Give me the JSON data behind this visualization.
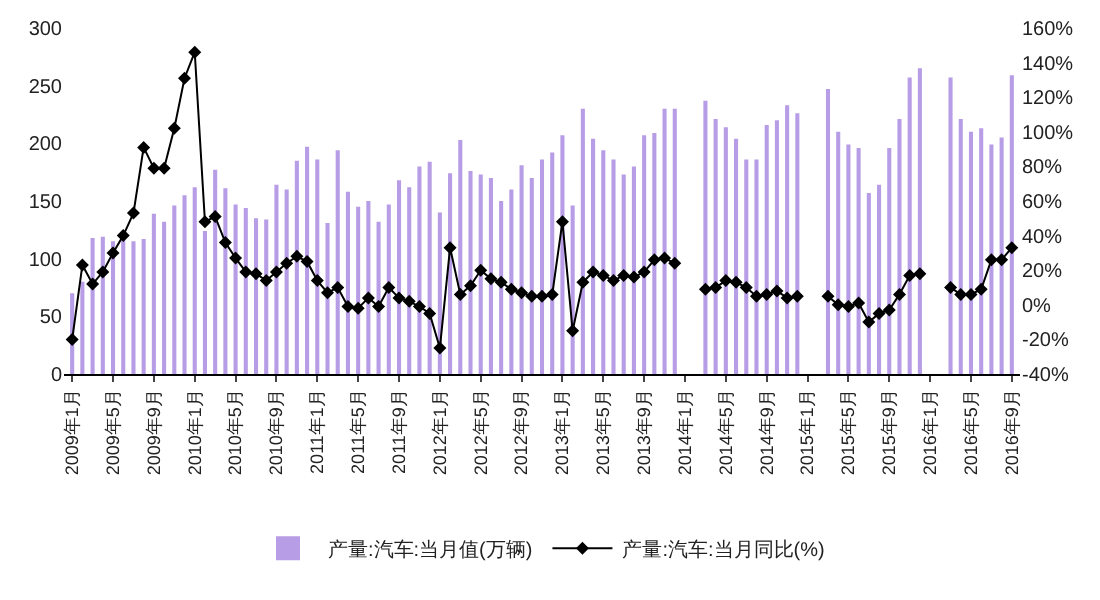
{
  "chart_data": {
    "type": "bar",
    "categories": [
      "2009年1月",
      null,
      null,
      null,
      "2009年5月",
      null,
      null,
      null,
      "2009年9月",
      null,
      null,
      null,
      "2010年1月",
      null,
      null,
      null,
      "2010年5月",
      null,
      null,
      null,
      "2010年9月",
      null,
      null,
      null,
      "2011年1月",
      null,
      null,
      null,
      "2011年5月",
      null,
      null,
      null,
      "2011年9月",
      null,
      null,
      null,
      "2012年1月",
      null,
      null,
      null,
      "2012年5月",
      null,
      null,
      null,
      "2012年9月",
      null,
      null,
      null,
      "2013年1月",
      null,
      null,
      null,
      "2013年5月",
      null,
      null,
      null,
      "2013年9月",
      null,
      null,
      null,
      "2014年1月",
      null,
      null,
      null,
      "2014年5月",
      null,
      null,
      null,
      "2014年9月",
      null,
      null,
      null,
      "2015年1月",
      null,
      null,
      null,
      "2015年5月",
      null,
      null,
      null,
      "2015年9月",
      null,
      null,
      null,
      "2016年1月",
      null,
      null,
      null,
      "2016年5月",
      null,
      null,
      null,
      "2016年9月"
    ],
    "series": [
      {
        "name": "产量:汽车:当月值(万辆)",
        "color": "#b79ce6",
        "values": [
          70,
          80,
          118,
          119,
          115,
          120,
          115,
          117,
          139,
          132,
          146,
          155,
          162,
          124,
          177,
          161,
          147,
          144,
          135,
          134,
          164,
          160,
          185,
          197,
          186,
          131,
          194,
          158,
          145,
          150,
          132,
          147,
          168,
          162,
          180,
          184,
          140,
          174,
          203,
          176,
          173,
          170,
          150,
          160,
          181,
          170,
          186,
          192,
          207,
          146,
          230,
          204,
          194,
          186,
          173,
          180,
          207,
          209,
          230,
          230,
          null,
          null,
          237,
          221,
          214,
          204,
          186,
          186,
          216,
          220,
          233,
          226,
          null,
          null,
          247,
          210,
          199,
          196,
          157,
          164,
          196,
          221,
          257,
          265,
          null,
          null,
          257,
          221,
          210,
          213,
          199,
          205,
          259
        ]
      },
      {
        "name": "产量:汽车:当月同比(%)",
        "type": "line",
        "axis": "y2",
        "color": "#000000",
        "values": [
          -20,
          23,
          12,
          19,
          30,
          40,
          53,
          91,
          79,
          79,
          102,
          131,
          146,
          48,
          51,
          36,
          27,
          19,
          18,
          14,
          19,
          24,
          28,
          25,
          14,
          7,
          10,
          -1,
          -2,
          4,
          -1,
          10,
          4,
          2,
          -1,
          -5,
          -25,
          33,
          6,
          11,
          20,
          15,
          13,
          9,
          7,
          5,
          5,
          6,
          48,
          -15,
          13,
          19,
          17,
          14,
          17,
          16,
          19,
          26,
          27,
          24,
          null,
          null,
          9,
          10,
          14,
          13,
          10,
          5,
          6,
          8,
          4,
          5,
          null,
          null,
          5,
          0,
          -1,
          1,
          -10,
          -5,
          -3,
          6,
          17,
          18,
          null,
          null,
          10,
          6,
          6,
          9,
          26,
          26,
          33
        ]
      }
    ],
    "ylim": [
      0,
      300
    ],
    "yticks": [
      0,
      50,
      100,
      150,
      200,
      250,
      300
    ],
    "y2lim": [
      -40,
      160
    ],
    "y2ticks": [
      {
        "value": -40,
        "label": "-40%"
      },
      {
        "value": -20,
        "label": "-20%"
      },
      {
        "value": 0,
        "label": "0%"
      },
      {
        "value": 20,
        "label": "20%"
      },
      {
        "value": 40,
        "label": "40%"
      },
      {
        "value": 60,
        "label": "60%"
      },
      {
        "value": 80,
        "label": "80%"
      },
      {
        "value": 100,
        "label": "100%"
      },
      {
        "value": 120,
        "label": "120%"
      },
      {
        "value": 140,
        "label": "140%"
      },
      {
        "value": 160,
        "label": "160%"
      }
    ],
    "grid": false,
    "legend": "bottom",
    "marker": "diamond",
    "line_style": "solid"
  }
}
